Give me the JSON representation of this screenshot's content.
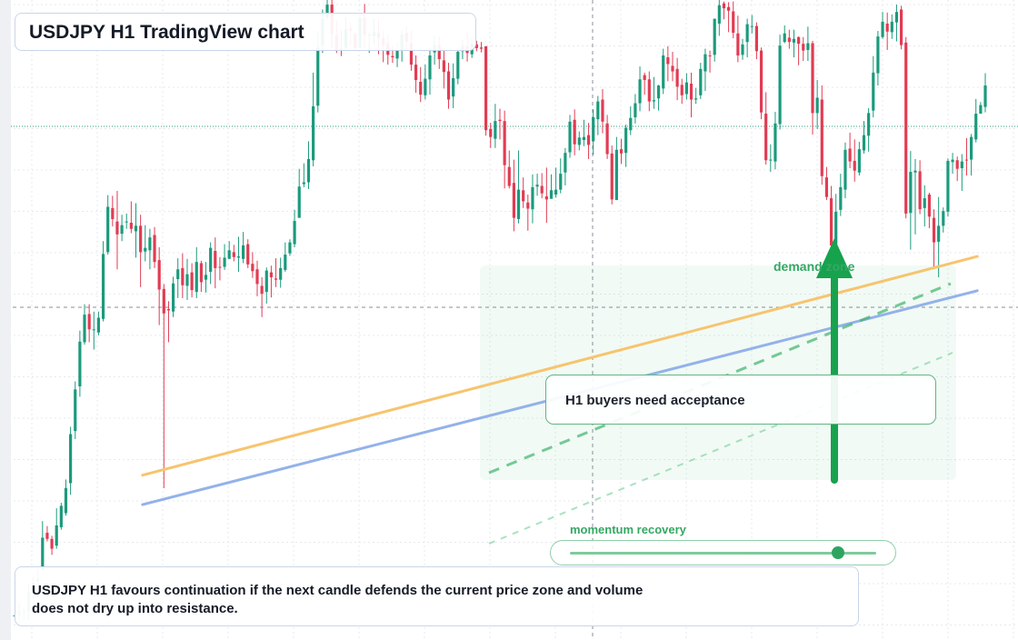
{
  "chart": {
    "title": "USDJPY H1 TradingView chart",
    "callout": "H1 buyers need acceptance",
    "zone_label": "demand zone",
    "meter_label": "momentum recovery",
    "meter_value": 0.87,
    "summary_line1": "USDJPY H1 favours continuation if the next candle defends the current price zone and volume",
    "summary_line2": "does not dry up into resistance."
  },
  "chart_data": {
    "type": "candlestick",
    "title": "USDJPY H1 TradingView chart",
    "xlabel": "",
    "ylabel": "",
    "ylim": [
      0,
      100
    ],
    "grid": true,
    "colors": {
      "up": "#1b9a7c",
      "down": "#e23b53",
      "trend_orange": "#f7c46e",
      "trend_blue": "#93b2ea",
      "zone": "#2aa55b"
    },
    "candles": [
      [
        4.0,
        4.0,
        4.0,
        4.0
      ],
      [
        4.0,
        4.8,
        6.2,
        2.3
      ],
      [
        4.5,
        4.8,
        5.2,
        3.0
      ],
      [
        4.6,
        7.9,
        9.1,
        3.2
      ],
      [
        8.0,
        9.3,
        10.3,
        6.7
      ],
      [
        9.5,
        10.0,
        11.6,
        9.1
      ],
      [
        11.5,
        16.7,
        19.4,
        11.5
      ],
      [
        17.5,
        16.5,
        18.6,
        16.1
      ],
      [
        16.5,
        14.9,
        17.0,
        13.9
      ],
      [
        15.4,
        18.7,
        21.5,
        14.9
      ],
      [
        18.4,
        21.9,
        22.4,
        18.0
      ],
      [
        20.7,
        24.8,
        26.2,
        20.3
      ],
      [
        25.6,
        33.6,
        34.8,
        23.7
      ],
      [
        34.1,
        40.9,
        42.2,
        32.8
      ],
      [
        41.4,
        48.7,
        50.5,
        39.7
      ],
      [
        48.6,
        53.1,
        54.8,
        48.2
      ],
      [
        53.2,
        50.7,
        54.8,
        48.6
      ],
      [
        50.7,
        50.7,
        53.6,
        47.4
      ],
      [
        50.2,
        52.6,
        53.6,
        49.7
      ],
      [
        52.4,
        63.0,
        65.1,
        52.0
      ],
      [
        63.3,
        70.7,
        72.6,
        62.9
      ],
      [
        70.5,
        68.7,
        72.5,
        67.5
      ],
      [
        68.3,
        66.2,
        73.3,
        60.5
      ],
      [
        66.3,
        67.7,
        69.4,
        65.1
      ],
      [
        68.2,
        68.3,
        69.6,
        67.1
      ],
      [
        68.1,
        67.1,
        71.6,
        66.4
      ],
      [
        66.7,
        67.6,
        71.3,
        62.4
      ],
      [
        67.6,
        63.3,
        69.4,
        57.6
      ],
      [
        63.4,
        64.0,
        67.7,
        61.8
      ],
      [
        63.6,
        65.7,
        67.1,
        60.5
      ],
      [
        66.1,
        61.7,
        67.4,
        60.7
      ],
      [
        62.0,
        57.2,
        64.1,
        51.4
      ],
      [
        57.3,
        53.3,
        58.1,
        24.8
      ],
      [
        54.0,
        53.8,
        55.3,
        48.6
      ],
      [
        53.6,
        58.2,
        59.3,
        52.7
      ],
      [
        58.9,
        60.5,
        62.3,
        55.8
      ],
      [
        60.7,
        57.9,
        63.1,
        55.8
      ],
      [
        57.8,
        59.7,
        62.2,
        55.5
      ],
      [
        60.0,
        57.1,
        61.5,
        55.9
      ],
      [
        56.8,
        61.7,
        64.1,
        55.8
      ],
      [
        61.5,
        58.4,
        61.9,
        56.8
      ],
      [
        58.8,
        59.6,
        61.7,
        56.7
      ],
      [
        60.1,
        64.0,
        64.9,
        58.1
      ],
      [
        63.5,
        60.7,
        65.7,
        57.4
      ],
      [
        60.9,
        60.8,
        62.5,
        58.7
      ],
      [
        60.9,
        62.4,
        64.6,
        60.4
      ],
      [
        62.2,
        63.6,
        65.1,
        62.2
      ],
      [
        63.3,
        62.5,
        64.5,
        61.8
      ],
      [
        62.4,
        62.6,
        65.8,
        60.1
      ],
      [
        62.2,
        64.4,
        66.6,
        61.5
      ],
      [
        64.6,
        61.3,
        65.4,
        60.7
      ],
      [
        61.4,
        60.2,
        63.3,
        59.1
      ],
      [
        60.5,
        58.1,
        61.9,
        56.1
      ],
      [
        57.8,
        56.5,
        59.2,
        52.7
      ],
      [
        56.8,
        60.3,
        60.8,
        54.9
      ],
      [
        60.0,
        59.2,
        61.1,
        55.9
      ],
      [
        59.0,
        58.8,
        62.3,
        57.6
      ],
      [
        58.8,
        60.7,
        62.4,
        57.5
      ],
      [
        60.4,
        62.9,
        64.9,
        60.1
      ],
      [
        63.1,
        64.9,
        65.4,
        62.7
      ],
      [
        64.6,
        68.4,
        70.2,
        64.1
      ],
      [
        68.9,
        74.0,
        76.9,
        68.9
      ],
      [
        74.4,
        74.7,
        77.8,
        73.9
      ],
      [
        74.7,
        78.5,
        81.4,
        73.6
      ],
      [
        78.3,
        87.1,
        92.6,
        77.3
      ],
      [
        87.2,
        96.7,
        99.4,
        86.1
      ],
      [
        97.0,
        101.4,
        102.9,
        95.8
      ],
      [
        101.6,
        103.7,
        105.9,
        101.2
      ],
      [
        103.7,
        98.9,
        107.1,
        96.6
      ],
      [
        98.7,
        96.3,
        101.1,
        95.8
      ],
      [
        96.5,
        96.2,
        99.5,
        95.3
      ],
      [
        96.7,
        99.7,
        101.6,
        96.4
      ],
      [
        99.8,
        99.4,
        100.7,
        97.1
      ],
      [
        98.9,
        96.6,
        99.2,
        96.4
      ],
      [
        96.7,
        101.5,
        102.0,
        96.6
      ],
      [
        101.6,
        98.8,
        103.8,
        96.5
      ],
      [
        98.8,
        98.8,
        99.2,
        95.8
      ],
      [
        98.5,
        99.2,
        101.4,
        97.2
      ],
      [
        99.1,
        98.3,
        101.3,
        95.6
      ],
      [
        98.3,
        97.1,
        99.4,
        94.3
      ],
      [
        97.4,
        95.5,
        98.8,
        93.9
      ],
      [
        95.3,
        95.1,
        97.2,
        94.2
      ],
      [
        94.9,
        96.2,
        97.5,
        93.5
      ],
      [
        96.2,
        98.8,
        99.6,
        94.4
      ],
      [
        99.1,
        97.7,
        100.2,
        96.4
      ],
      [
        97.4,
        93.9,
        99.4,
        92.9
      ],
      [
        93.9,
        91.4,
        95.4,
        89.3
      ],
      [
        91.1,
        89.0,
        93.5,
        87.8
      ],
      [
        88.9,
        91.6,
        93.9,
        88.2
      ],
      [
        91.5,
        95.4,
        96.7,
        89.0
      ],
      [
        95.9,
        97.1,
        98.7,
        93.9
      ],
      [
        97.1,
        94.8,
        98.5,
        93.2
      ],
      [
        94.6,
        92.7,
        96.6,
        90.0
      ],
      [
        92.8,
        88.2,
        94.2,
        86.7
      ],
      [
        88.7,
        91.7,
        94.1,
        86.8
      ],
      [
        91.6,
        96.0,
        96.4,
        90.7
      ],
      [
        96.1,
        97.0,
        98.0,
        94.8
      ],
      [
        96.9,
        95.8,
        99.2,
        94.4
      ],
      [
        95.6,
        97.3,
        98.2,
        95.0
      ],
      [
        97.2,
        96.6,
        97.8,
        96.1
      ],
      [
        96.7,
        96.5,
        97.6,
        95.9
      ],
      [
        96.9,
        83.2,
        96.9,
        82.3
      ],
      [
        83.4,
        82.1,
        84.4,
        80.3
      ],
      [
        81.8,
        84.7,
        87.5,
        80.3
      ],
      [
        84.9,
        84.7,
        86.7,
        81.7
      ],
      [
        84.7,
        77.5,
        86.4,
        73.7
      ],
      [
        77.2,
        74.1,
        79.9,
        73.7
      ],
      [
        74.6,
        68.9,
        78.4,
        66.7
      ],
      [
        68.7,
        73.5,
        79.9,
        68.0
      ],
      [
        73.4,
        71.6,
        75.5,
        70.5
      ],
      [
        71.4,
        70.4,
        72.7,
        66.8
      ],
      [
        70.3,
        73.9,
        76.0,
        68.0
      ],
      [
        74.0,
        74.3,
        76.1,
        72.5
      ],
      [
        74.1,
        72.9,
        76.2,
        72.1
      ],
      [
        72.4,
        71.9,
        77.1,
        68.1
      ],
      [
        72.0,
        73.4,
        76.0,
        72.1
      ],
      [
        72.7,
        73.5,
        77.1,
        72.2
      ],
      [
        73.5,
        76.1,
        78.6,
        72.9
      ],
      [
        76.3,
        79.5,
        80.3,
        74.2
      ],
      [
        79.6,
        84.6,
        85.7,
        78.7
      ],
      [
        84.9,
        80.9,
        86.6,
        79.1
      ],
      [
        80.8,
        82.0,
        83.0,
        79.9
      ],
      [
        81.6,
        82.1,
        84.9,
        80.6
      ],
      [
        82.4,
        80.8,
        84.4,
        78.5
      ],
      [
        81.4,
        85.3,
        86.6,
        79.2
      ],
      [
        85.0,
        87.9,
        88.8,
        82.4
      ],
      [
        88.2,
        84.6,
        89.9,
        82.7
      ],
      [
        84.3,
        79.3,
        85.7,
        78.5
      ],
      [
        79.4,
        71.9,
        80.7,
        71.1
      ],
      [
        71.8,
        80.0,
        82.1,
        71.8
      ],
      [
        80.1,
        79.4,
        81.8,
        77.7
      ],
      [
        79.5,
        83.6,
        84.1,
        77.2
      ],
      [
        83.2,
        85.2,
        87.1,
        82.4
      ],
      [
        85.3,
        87.6,
        89.1,
        84.3
      ],
      [
        87.6,
        91.5,
        93.6,
        86.3
      ],
      [
        92.2,
        91.4,
        92.6,
        89.0
      ],
      [
        91.5,
        87.9,
        92.8,
        86.3
      ],
      [
        87.9,
        88.1,
        91.9,
        86.7
      ],
      [
        88.4,
        90.5,
        90.6,
        86.4
      ],
      [
        90.0,
        95.4,
        96.5,
        89.1
      ],
      [
        95.1,
        94.0,
        96.9,
        91.2
      ],
      [
        93.7,
        92.8,
        96.0,
        91.2
      ],
      [
        93.2,
        90.3,
        95.0,
        88.1
      ],
      [
        90.6,
        88.9,
        91.6,
        87.5
      ],
      [
        89.1,
        91.0,
        92.5,
        88.2
      ],
      [
        90.8,
        88.2,
        92.6,
        85.3
      ],
      [
        88.2,
        88.4,
        90.1,
        87.5
      ],
      [
        88.9,
        93.2,
        94.2,
        88.3
      ],
      [
        92.8,
        95.6,
        96.5,
        89.6
      ],
      [
        95.4,
        95.3,
        96.2,
        92.6
      ],
      [
        95.5,
        101.4,
        101.4,
        94.4
      ],
      [
        100.6,
        103.6,
        105.6,
        98.6
      ],
      [
        103.9,
        103.1,
        104.2,
        101.3
      ],
      [
        103.3,
        102.7,
        104.1,
        99.2
      ],
      [
        102.6,
        99.1,
        104.2,
        98.2
      ],
      [
        99.0,
        95.4,
        101.9,
        94.3
      ],
      [
        95.5,
        97.2,
        98.1,
        94.7
      ],
      [
        97.6,
        100.5,
        101.4,
        95.1
      ],
      [
        100.1,
        100.2,
        102.0,
        99.0
      ],
      [
        100.2,
        96.1,
        100.8,
        94.8
      ],
      [
        96.2,
        86.1,
        96.7,
        85.0
      ],
      [
        85.9,
        78.3,
        89.4,
        77.6
      ],
      [
        78.3,
        78.4,
        80.9,
        76.4
      ],
      [
        78.1,
        84.3,
        86.2,
        76.8
      ],
      [
        84.2,
        97.0,
        98.8,
        83.3
      ],
      [
        97.6,
        99.0,
        100.3,
        97.4
      ],
      [
        98.3,
        97.6,
        99.6,
        96.5
      ],
      [
        97.5,
        98.1,
        99.6,
        95.1
      ],
      [
        98.4,
        97.3,
        98.5,
        93.8
      ],
      [
        97.3,
        96.2,
        98.4,
        94.5
      ],
      [
        96.3,
        97.4,
        100.1,
        94.5
      ],
      [
        97.4,
        86.0,
        97.8,
        82.5
      ],
      [
        86.0,
        88.5,
        91.4,
        83.4
      ],
      [
        88.2,
        75.7,
        90.5,
        74.3
      ],
      [
        75.5,
        72.3,
        77.2,
        71.8
      ],
      [
        72.1,
        64.4,
        74.1,
        62.4
      ],
      [
        64.5,
        69.9,
        72.8,
        64.3
      ],
      [
        70.2,
        73.9,
        76.1,
        69.2
      ],
      [
        73.5,
        80.0,
        81.2,
        72.1
      ],
      [
        80.2,
        78.1,
        82.8,
        77.0
      ],
      [
        78.2,
        76.6,
        81.7,
        74.8
      ],
      [
        76.3,
        80.1,
        81.3,
        75.8
      ],
      [
        79.9,
        82.4,
        84.7,
        79.4
      ],
      [
        82.3,
        86.0,
        86.8,
        79.7
      ],
      [
        86.4,
        92.6,
        95.3,
        85.3
      ],
      [
        92.5,
        98.5,
        99.4,
        90.5
      ],
      [
        98.4,
        100.9,
        102.5,
        98.1
      ],
      [
        100.6,
        99.3,
        102.4,
        96.3
      ],
      [
        99.2,
        100.9,
        102.1,
        98.1
      ],
      [
        100.8,
        102.5,
        103.7,
        97.7
      ],
      [
        102.9,
        97.1,
        103.5,
        96.4
      ],
      [
        97.5,
        69.6,
        98.4,
        68.8
      ],
      [
        69.7,
        76.4,
        79.8,
        63.7
      ],
      [
        76.3,
        76.6,
        78.5,
        66.2
      ],
      [
        76.5,
        70.3,
        78.3,
        69.5
      ],
      [
        70.5,
        72.1,
        74.2,
        67.5
      ],
      [
        72.7,
        69.1,
        73.0,
        67.2
      ],
      [
        68.9,
        64.9,
        70.3,
        60.6
      ],
      [
        65.0,
        67.6,
        72.3,
        59.2
      ],
      [
        67.6,
        70.0,
        70.6,
        66.5
      ],
      [
        69.9,
        78.2,
        78.6,
        69.1
      ],
      [
        78.0,
        78.4,
        79.5,
        76.1
      ],
      [
        78.3,
        76.9,
        78.9,
        74.9
      ],
      [
        77.0,
        78.1,
        79.3,
        73.3
      ],
      [
        78.4,
        78.3,
        81.9,
        75.8
      ],
      [
        78.4,
        82.1,
        82.6,
        75.8
      ],
      [
        81.7,
        85.9,
        88.3,
        81.2
      ],
      [
        85.9,
        87.3,
        87.8,
        86.0
      ],
      [
        87.0,
        90.5,
        92.5,
        86.1
      ]
    ],
    "trendlines": [
      {
        "color": "orange",
        "from": [
          0.14,
          26.9
        ],
        "to": [
          0.96,
          62.6
        ]
      },
      {
        "color": "blue",
        "from": [
          0.14,
          22.1
        ],
        "to": [
          0.96,
          57.0
        ]
      }
    ],
    "markers": {
      "demand_zone_arrow": "up",
      "momentum_recovery": 0.87
    }
  }
}
